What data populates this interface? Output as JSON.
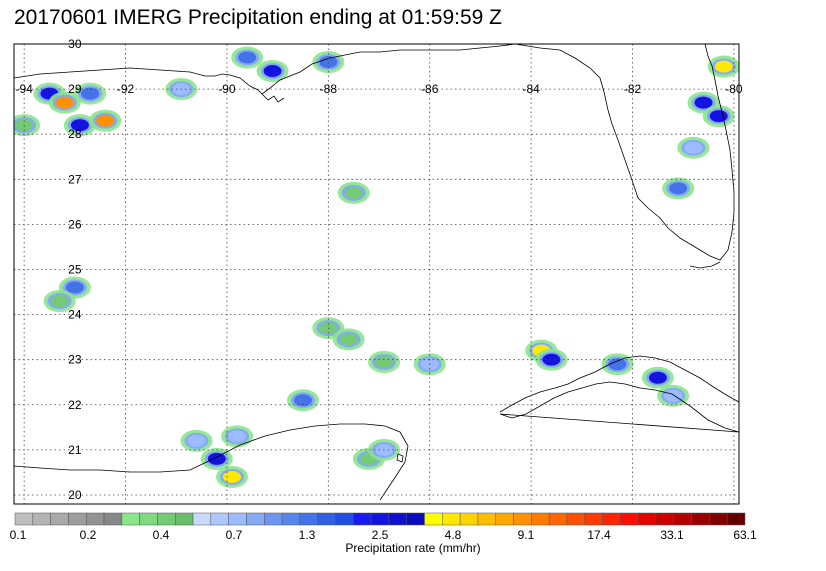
{
  "title": "20170601 IMERG Precipitation ending at 01:59:59 Z",
  "map": {
    "lon_range": [
      -94.2,
      -79.9
    ],
    "lat_range": [
      19.8,
      30.0
    ],
    "lon_ticks": [
      {
        "value": -94,
        "label": "-94"
      },
      {
        "value": -92,
        "label": "-92"
      },
      {
        "value": -90,
        "label": "-90"
      },
      {
        "value": -88,
        "label": "-88"
      },
      {
        "value": -86,
        "label": "-86"
      },
      {
        "value": -84,
        "label": "-84"
      },
      {
        "value": -82,
        "label": "-82"
      },
      {
        "value": -80,
        "label": "-80"
      }
    ],
    "lat_ticks": [
      {
        "value": 30,
        "label": "30"
      },
      {
        "value": 29,
        "label": "29"
      },
      {
        "value": 28,
        "label": "28"
      },
      {
        "value": 27,
        "label": "27"
      },
      {
        "value": 26,
        "label": "26"
      },
      {
        "value": 25,
        "label": "25"
      },
      {
        "value": 24,
        "label": "24"
      },
      {
        "value": 23,
        "label": "23"
      },
      {
        "value": 22,
        "label": "22"
      },
      {
        "value": 21,
        "label": "21"
      },
      {
        "value": 20,
        "label": "20"
      }
    ],
    "grid": "dotted",
    "precip_cells": [
      {
        "lon": -93.5,
        "lat": 28.9,
        "rate": 2.5
      },
      {
        "lon": -93.2,
        "lat": 28.7,
        "rate": 9.1
      },
      {
        "lon": -92.9,
        "lat": 28.2,
        "rate": 2.5
      },
      {
        "lon": -92.4,
        "lat": 28.3,
        "rate": 9.1
      },
      {
        "lon": -92.7,
        "lat": 28.9,
        "rate": 1.3
      },
      {
        "lon": -89.6,
        "lat": 29.7,
        "rate": 1.3
      },
      {
        "lon": -89.1,
        "lat": 29.4,
        "rate": 2.5
      },
      {
        "lon": -88.0,
        "lat": 29.6,
        "rate": 1.3
      },
      {
        "lon": -90.9,
        "lat": 29.0,
        "rate": 0.7
      },
      {
        "lon": -80.2,
        "lat": 29.5,
        "rate": 4.8
      },
      {
        "lon": -80.6,
        "lat": 28.7,
        "rate": 2.5
      },
      {
        "lon": -80.3,
        "lat": 28.4,
        "rate": 2.5
      },
      {
        "lon": -80.8,
        "lat": 27.7,
        "rate": 0.7
      },
      {
        "lon": -81.1,
        "lat": 26.8,
        "rate": 1.3
      },
      {
        "lon": -93.0,
        "lat": 24.6,
        "rate": 1.3
      },
      {
        "lon": -93.3,
        "lat": 24.3,
        "rate": 0.4
      },
      {
        "lon": -83.8,
        "lat": 23.2,
        "rate": 4.8
      },
      {
        "lon": -83.6,
        "lat": 23.0,
        "rate": 2.5
      },
      {
        "lon": -82.3,
        "lat": 22.9,
        "rate": 1.3
      },
      {
        "lon": -81.5,
        "lat": 22.6,
        "rate": 2.5
      },
      {
        "lon": -81.2,
        "lat": 22.2,
        "rate": 0.7
      },
      {
        "lon": -88.5,
        "lat": 22.1,
        "rate": 1.3
      },
      {
        "lon": -90.2,
        "lat": 20.8,
        "rate": 2.5
      },
      {
        "lon": -89.9,
        "lat": 20.4,
        "rate": 4.8
      },
      {
        "lon": -90.6,
        "lat": 21.2,
        "rate": 0.7
      },
      {
        "lon": -89.8,
        "lat": 21.3,
        "rate": 0.7
      },
      {
        "lon": -86.9,
        "lat": 22.95,
        "rate": 0.4
      },
      {
        "lon": -86.0,
        "lat": 22.9,
        "rate": 0.7
      },
      {
        "lon": -88.0,
        "lat": 23.7,
        "rate": 0.4
      },
      {
        "lon": -87.6,
        "lat": 23.45,
        "rate": 0.4
      },
      {
        "lon": -87.5,
        "lat": 26.7,
        "rate": 0.4
      },
      {
        "lon": -87.2,
        "lat": 20.8,
        "rate": 0.4
      },
      {
        "lon": -86.9,
        "lat": 21.0,
        "rate": 0.7
      },
      {
        "lon": -94.0,
        "lat": 28.2,
        "rate": 0.4
      }
    ]
  },
  "colorbar": {
    "colors": [
      "#bebebe",
      "#b3b3b3",
      "#a9a9a9",
      "#9e9e9e",
      "#939393",
      "#888888",
      "#8ae68a",
      "#80d880",
      "#75cb75",
      "#6abd6a",
      "#c8d8ff",
      "#aec8ff",
      "#9cbcff",
      "#86aaf5",
      "#6e96f0",
      "#5884ec",
      "#4472e8",
      "#3160e4",
      "#204ee0",
      "#1a1af0",
      "#1414e0",
      "#0f0fd0",
      "#0a0ac0",
      "#ffff00",
      "#ffe900",
      "#ffd300",
      "#ffbd00",
      "#ffa700",
      "#ff9100",
      "#ff7b00",
      "#ff6500",
      "#ff4f00",
      "#ff3900",
      "#ff2300",
      "#ff0d00",
      "#e60000",
      "#cc0000",
      "#b30000",
      "#9a0000",
      "#800000",
      "#660000"
    ],
    "tick_labels": [
      "0.1",
      "0.2",
      "0.4",
      "0.7",
      "1.3",
      "2.5",
      "4.8",
      "9.1",
      "17.4",
      "33.1",
      "63.1"
    ],
    "label": "Precipitation rate (mm/hr)"
  }
}
